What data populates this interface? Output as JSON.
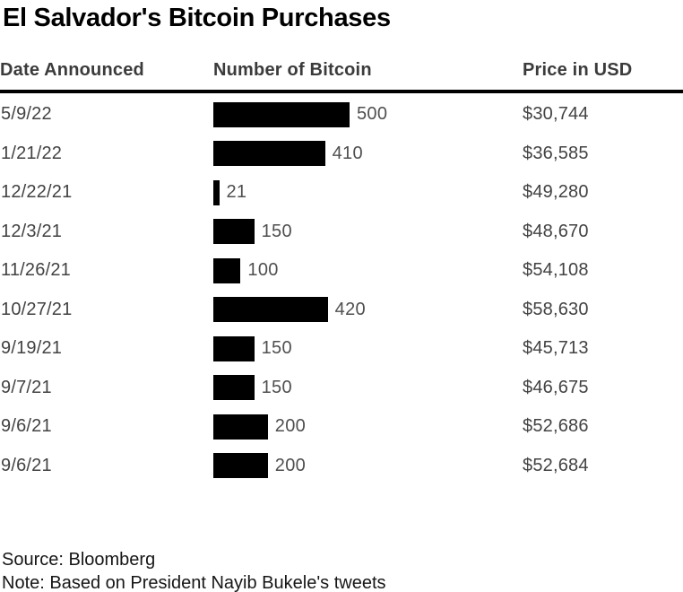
{
  "title": "El Salvador's Bitcoin Purchases",
  "columns": {
    "date": "Date Announced",
    "btc": "Number of Bitcoin",
    "price": "Price in USD"
  },
  "source": "Source: Bloomberg",
  "note": "Note: Based on President Nayib Bukele's tweets",
  "colors": {
    "background": "#ffffff",
    "title": "#000000",
    "header_text": "#3b3b3b",
    "body_text": "#424242",
    "bar": "#000000",
    "rule": "#000000"
  },
  "chart_data": {
    "type": "bar",
    "orientation": "horizontal",
    "title": "El Salvador's Bitcoin Purchases",
    "categories": [
      "5/9/22",
      "1/21/22",
      "12/22/21",
      "12/3/21",
      "11/26/21",
      "10/27/21",
      "9/19/21",
      "9/7/21",
      "9/6/21",
      "9/6/21"
    ],
    "series": [
      {
        "name": "Number of Bitcoin",
        "values": [
          500,
          410,
          21,
          150,
          100,
          420,
          150,
          150,
          200,
          200
        ]
      },
      {
        "name": "Price in USD",
        "values_text": [
          "$30,744",
          "$36,585",
          "$49,280",
          "$48,670",
          "$54,108",
          "$58,630",
          "$45,713",
          "$46,675",
          "$52,686",
          "$52,684"
        ],
        "values": [
          30744,
          36585,
          49280,
          48670,
          54108,
          58630,
          45713,
          46675,
          52686,
          52684
        ]
      }
    ],
    "value_labels": [
      "500",
      "410",
      "21",
      "150",
      "100",
      "420",
      "150",
      "150",
      "200",
      "200"
    ],
    "xlabel": "Number of Bitcoin",
    "xlim": [
      0,
      500
    ],
    "grid": false,
    "legend": false
  }
}
